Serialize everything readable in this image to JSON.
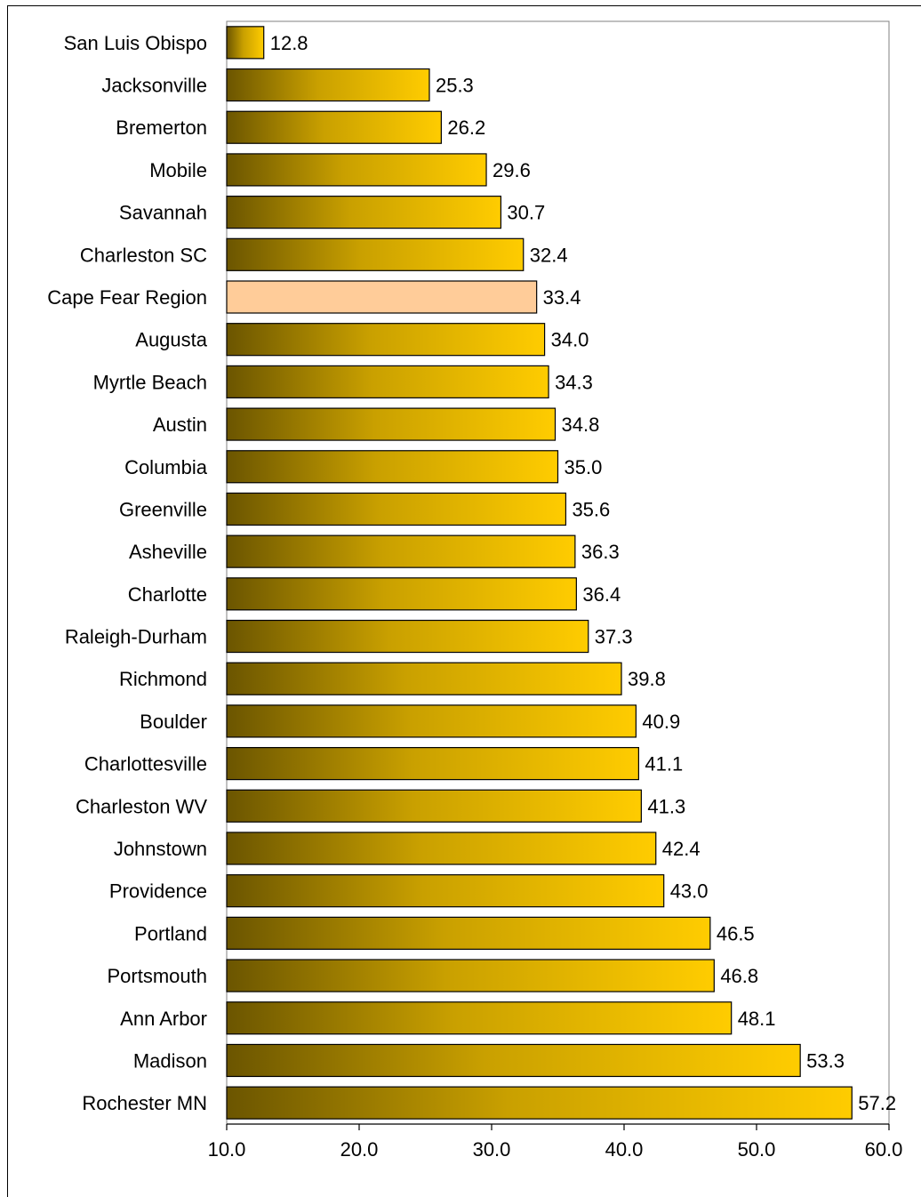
{
  "chart_data": {
    "type": "bar",
    "orientation": "horizontal",
    "title": "",
    "xlabel": "",
    "ylabel": "",
    "categories": [
      "San Luis Obispo",
      "Jacksonville",
      "Bremerton",
      "Mobile",
      "Savannah",
      "Charleston SC",
      "Cape Fear Region",
      "Augusta",
      "Myrtle Beach",
      "Austin",
      "Columbia",
      "Greenville",
      "Asheville",
      "Charlotte",
      "Raleigh-Durham",
      "Richmond",
      "Boulder",
      "Charlottesville",
      "Charleston WV",
      "Johnstown",
      "Providence",
      "Portland",
      "Portsmouth",
      "Ann Arbor",
      "Madison",
      "Rochester MN"
    ],
    "values": [
      12.8,
      25.3,
      26.2,
      29.6,
      30.7,
      32.4,
      33.4,
      34.0,
      34.3,
      34.8,
      35.0,
      35.6,
      36.3,
      36.4,
      37.3,
      39.8,
      40.9,
      41.1,
      41.3,
      42.4,
      43.0,
      46.5,
      46.8,
      48.1,
      53.3,
      57.2
    ],
    "value_labels": [
      "12.8",
      "25.3",
      "26.2",
      "29.6",
      "30.7",
      "32.4",
      "33.4",
      "34.0",
      "34.3",
      "34.8",
      "35.0",
      "35.6",
      "36.3",
      "36.4",
      "37.3",
      "39.8",
      "40.9",
      "41.1",
      "41.3",
      "42.4",
      "43.0",
      "46.5",
      "46.8",
      "48.1",
      "53.3",
      "57.2"
    ],
    "xlim": [
      10,
      60
    ],
    "xticks": [
      10,
      20,
      30,
      40,
      50,
      60
    ],
    "xtick_labels": [
      "10.0",
      "20.0",
      "30.0",
      "40.0",
      "50.0",
      "60.0"
    ],
    "highlight_category": "Cape Fear Region",
    "grid": false,
    "legend": "none",
    "colors": {
      "bar_gradient_start": "#6b5500",
      "bar_gradient_end": "#ffcc00",
      "highlight_fill": "#ffcc99",
      "border": "#000000"
    }
  }
}
